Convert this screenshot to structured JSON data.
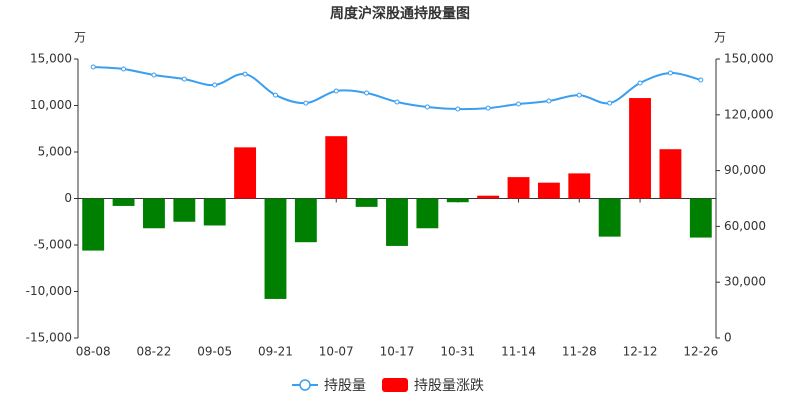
{
  "chart_data": {
    "type": "bar_line",
    "title": "周度沪深股通持股量图",
    "y_unit": "万",
    "y2_unit": "万",
    "categories": [
      "08-08",
      null,
      "08-22",
      null,
      "09-05",
      null,
      "09-21",
      null,
      "10-07",
      null,
      "10-17",
      null,
      "10-31",
      null,
      "11-14",
      null,
      "11-28",
      null,
      "12-12",
      null,
      "12-26"
    ],
    "series": [
      {
        "name": "持股量",
        "type": "line",
        "axis": "y2",
        "color": "#3a9ff0",
        "values": [
          145700,
          144600,
          141400,
          139200,
          136000,
          141900,
          130600,
          126300,
          132800,
          131700,
          126900,
          124200,
          123100,
          123600,
          125800,
          127400,
          130600,
          126300,
          137100,
          142500,
          138700
        ]
      },
      {
        "name": "持股量涨跌",
        "type": "bar",
        "axis": "y",
        "color": "#ff0000",
        "negative_color": "#008000",
        "values": [
          -5600,
          -800,
          -3200,
          -2500,
          -2900,
          5500,
          -10800,
          -4700,
          6700,
          -900,
          -5100,
          -3200,
          -400,
          300,
          2300,
          1700,
          2700,
          -4100,
          10800,
          5300,
          -4200
        ]
      }
    ],
    "ylim": [
      -15000,
      15000
    ],
    "yticks": [
      {
        "value": -15000,
        "label": "-15,000"
      },
      {
        "value": -10000,
        "label": "-10,000"
      },
      {
        "value": -5000,
        "label": "-5,000"
      },
      0,
      {
        "value": 5000,
        "label": "5,000"
      },
      {
        "value": 10000,
        "label": "10,000"
      },
      {
        "value": 15000,
        "label": "15,000"
      }
    ],
    "y2lim": [
      0,
      150000
    ],
    "y2ticks": [
      0,
      {
        "value": 30000,
        "label": "30,000"
      },
      {
        "value": 60000,
        "label": "60,000"
      },
      {
        "value": 90000,
        "label": "90,000"
      },
      {
        "value": 120000,
        "label": "120,000"
      },
      {
        "value": 150000,
        "label": "150,000"
      }
    ]
  }
}
